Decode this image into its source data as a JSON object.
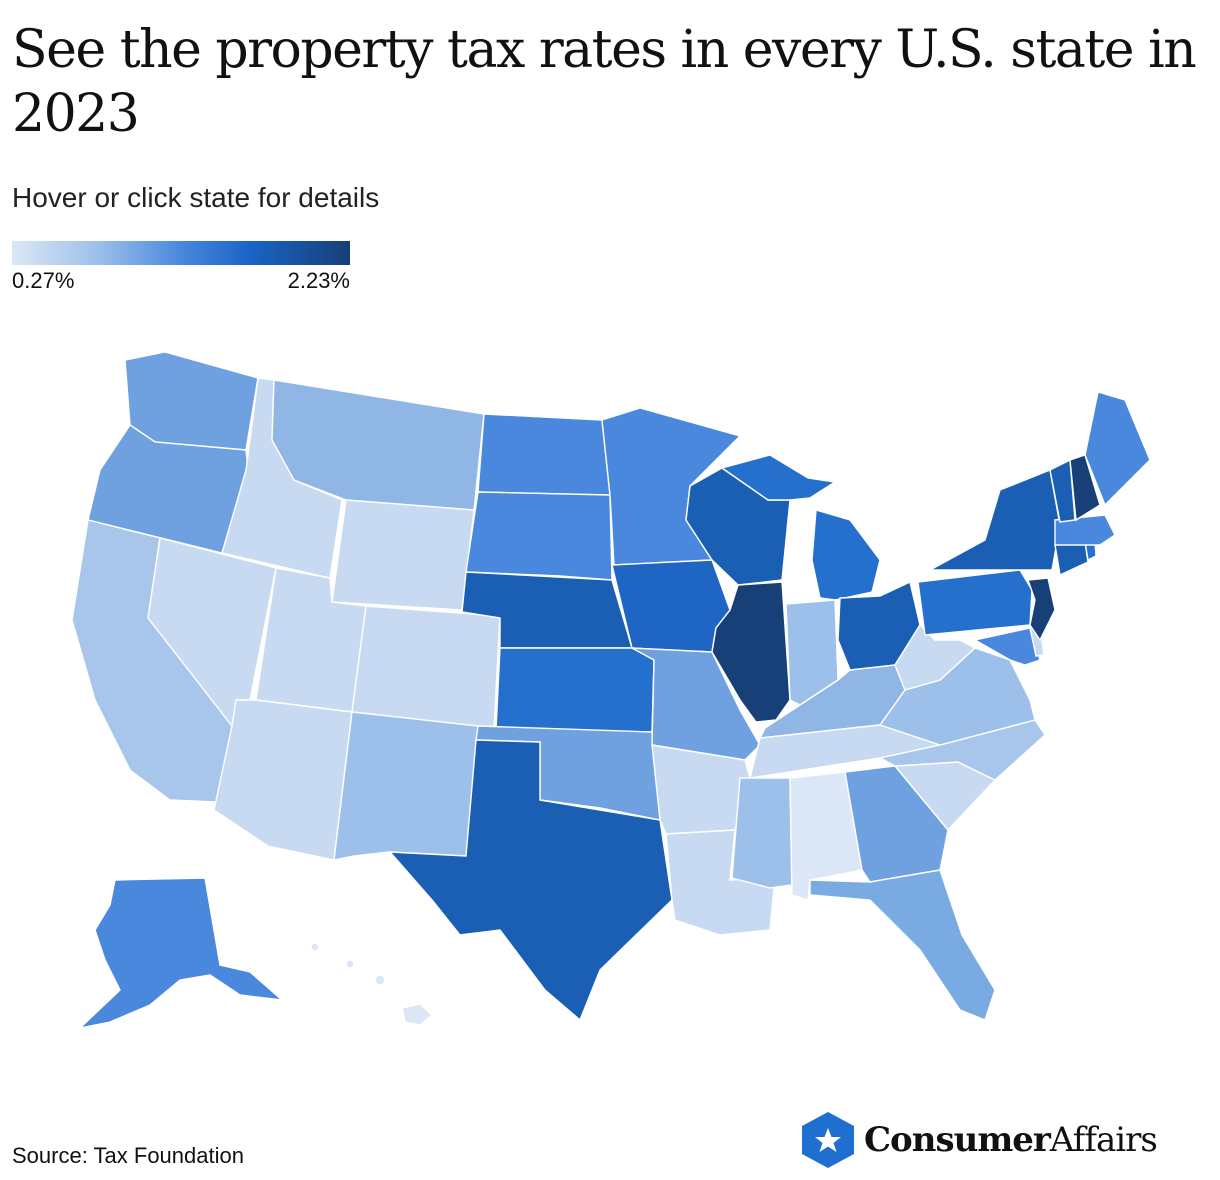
{
  "title": "See the property tax rates in every U.S. state in 2023",
  "subtitle": "Hover or click state for details",
  "legend": {
    "min_label": "0.27%",
    "max_label": "2.23%"
  },
  "source": "Source: Tax Foundation",
  "brand": {
    "name_bold": "Consumer",
    "name_light": "Affairs",
    "logo_color": "#1f6fd1"
  },
  "color_scale": [
    "#dbe7f6",
    "#9dc0ea",
    "#4a88de",
    "#1b64c8",
    "#173f78"
  ]
}
